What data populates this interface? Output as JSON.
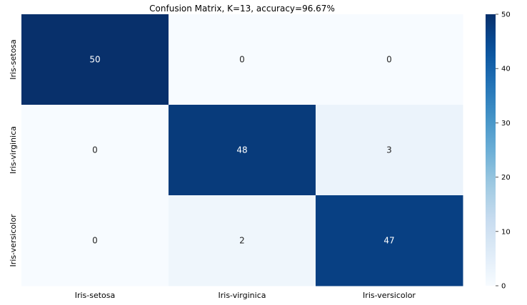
{
  "chart_data": {
    "type": "heatmap",
    "title": "Confusion Matrix, K=13, accuracy=96.67%",
    "x_categories": [
      "Iris-setosa",
      "Iris-virginica",
      "Iris-versicolor"
    ],
    "y_categories": [
      "Iris-setosa",
      "Iris-virginica",
      "Iris-versicolor"
    ],
    "values": [
      [
        50,
        0,
        0
      ],
      [
        0,
        48,
        3
      ],
      [
        0,
        2,
        47
      ]
    ],
    "colorbar": {
      "min": 0,
      "max": 50,
      "ticks": [
        "0",
        "10",
        "20",
        "30",
        "40",
        "50"
      ]
    },
    "colormap": "Blues",
    "colors": {
      "low": "#f7fbff",
      "high": "#08306b"
    }
  }
}
